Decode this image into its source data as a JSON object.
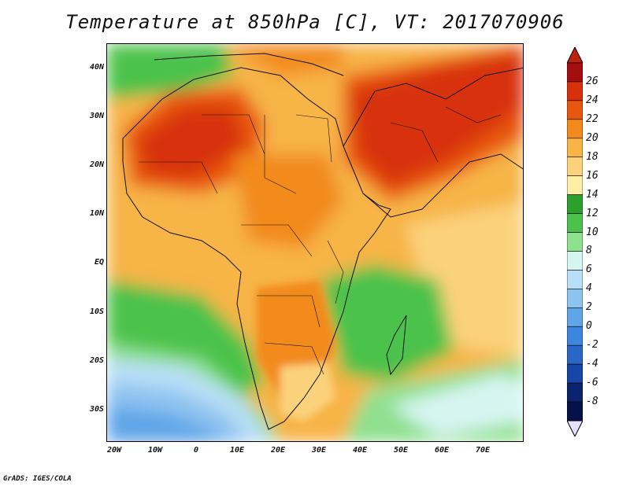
{
  "title": "Temperature at 850hPa [C], VT: 2017070906",
  "credit": "GrADS: IGES/COLA",
  "map": {
    "lat_ticks": [
      "40N",
      "30N",
      "20N",
      "10N",
      "EQ",
      "10S",
      "20S",
      "30S"
    ],
    "lon_ticks": [
      "20W",
      "10W",
      "0",
      "10E",
      "20E",
      "30E",
      "40E",
      "50E",
      "60E",
      "70E"
    ]
  },
  "colorbar": {
    "labels": [
      "26",
      "24",
      "22",
      "20",
      "18",
      "16",
      "14",
      "12",
      "10",
      "8",
      "6",
      "4",
      "2",
      "0",
      "-2",
      "-4",
      "-6",
      "-8"
    ],
    "colors": [
      "#a50e0e",
      "#d7300a",
      "#e8570f",
      "#f28a1c",
      "#f7b447",
      "#fbd27c",
      "#fcefa5",
      "#2ca02c",
      "#4cc24c",
      "#8fe08f",
      "#d6f5f0",
      "#b9def7",
      "#8ec3f0",
      "#5fa5e8",
      "#3d86dd",
      "#2966c8",
      "#1845a8",
      "#0c2470",
      "#06104a"
    ],
    "under_color": "#e6e0ff",
    "over_color": "#c0200c"
  }
}
